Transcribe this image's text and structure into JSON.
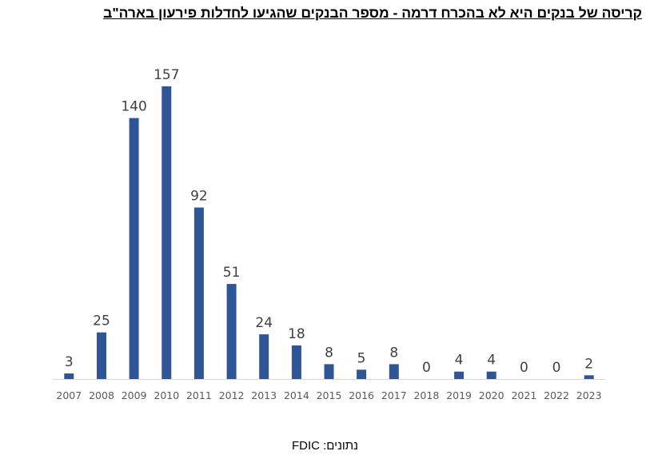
{
  "title": "קריסה של בנקים היא לא בהכרח דרמה - מספר הבנקים שהגיעו לחדלות פירעון בארה\"ב",
  "source": "נתונים: FDIC",
  "chart_data": {
    "type": "bar",
    "categories": [
      "2007",
      "2008",
      "2009",
      "2010",
      "2011",
      "2012",
      "2013",
      "2014",
      "2015",
      "2016",
      "2017",
      "2018",
      "2019",
      "2020",
      "2021",
      "2022",
      "2023"
    ],
    "values": [
      3,
      25,
      140,
      157,
      92,
      51,
      24,
      18,
      8,
      5,
      8,
      0,
      4,
      4,
      0,
      0,
      2
    ],
    "data_labels": [
      "3",
      "25",
      "140",
      "157",
      "92",
      "51",
      "24",
      "18",
      "8",
      "5",
      "8",
      "0",
      "4",
      "4",
      "0",
      "0",
      "2"
    ],
    "bar_color": "#2f5597",
    "axis_color": "#d9d9d9",
    "ylim": [
      0,
      157
    ],
    "grid": false,
    "legend": false
  }
}
